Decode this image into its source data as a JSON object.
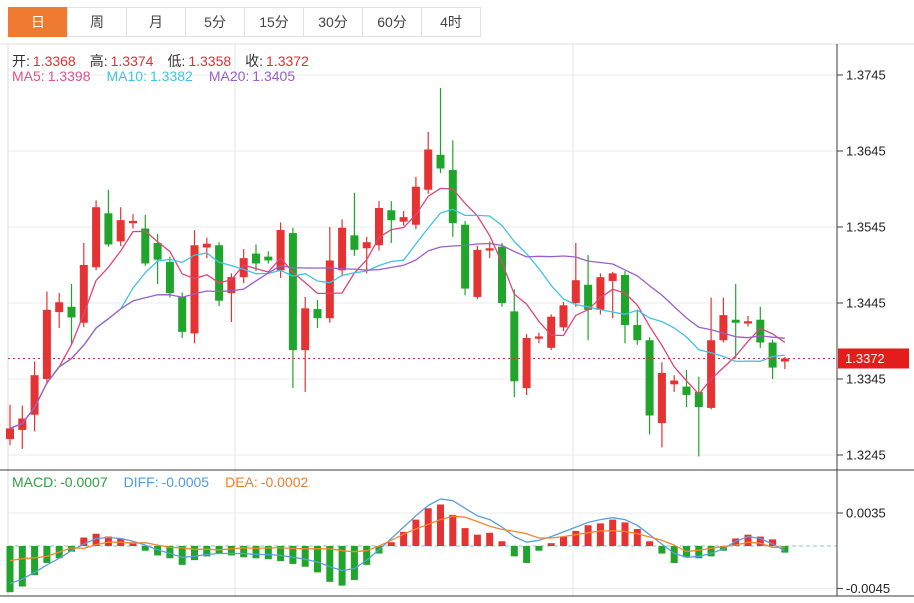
{
  "tabs": {
    "items": [
      {
        "key": "day",
        "label": "日",
        "active": true
      },
      {
        "key": "week",
        "label": "周",
        "active": false
      },
      {
        "key": "month",
        "label": "月",
        "active": false
      },
      {
        "key": "5min",
        "label": "5分",
        "active": false
      },
      {
        "key": "15min",
        "label": "15分",
        "active": false
      },
      {
        "key": "30min",
        "label": "30分",
        "active": false
      },
      {
        "key": "60min",
        "label": "60分",
        "active": false
      },
      {
        "key": "4hour",
        "label": "4时",
        "active": false
      }
    ]
  },
  "quote": {
    "ohlc": [
      {
        "label": "开:",
        "value": "1.3368"
      },
      {
        "label": "高:",
        "value": "1.3374"
      },
      {
        "label": "低:",
        "value": "1.3358"
      },
      {
        "label": "收:",
        "value": "1.3372"
      }
    ],
    "ma": [
      {
        "label": "MA5:",
        "value": "1.3398",
        "color": "#e0528c"
      },
      {
        "label": "MA10:",
        "value": "1.3382",
        "color": "#3fc3e4"
      },
      {
        "label": "MA20:",
        "value": "1.3405",
        "color": "#9a5fc8"
      }
    ]
  },
  "macd_header": [
    {
      "label": "MACD:",
      "value": "-0.0007",
      "color": "#2f9e3f"
    },
    {
      "label": "DIFF:",
      "value": "-0.0005",
      "color": "#4f9be0"
    },
    {
      "label": "DEA:",
      "value": "-0.0002",
      "color": "#ef7c2e"
    }
  ],
  "colors": {
    "up": "#e53232",
    "down": "#1fa52a",
    "ma5": "#e0447c",
    "ma10": "#3fc3e4",
    "ma20": "#9a5fc8",
    "diff": "#5a9fe0",
    "dea": "#f5862c",
    "price_line": "#e03030",
    "badge": "#e51c1c",
    "tab_active": "#ee7b30",
    "grid": "#ebebeb",
    "axis": "#3c3c3c",
    "zero_dash": "#85c2e8"
  },
  "chart_data": {
    "type": "candlestick",
    "panels": [
      "price",
      "macd"
    ],
    "price_ticks": [
      "1.3745",
      "1.3645",
      "1.3545",
      "1.3445",
      "1.3345",
      "1.3245"
    ],
    "last_price": "1.3372",
    "ma_periods": [
      5,
      10,
      20
    ],
    "candles": [
      [
        1.3266,
        1.3311,
        1.3258,
        1.328
      ],
      [
        1.3278,
        1.331,
        1.3253,
        1.3293
      ],
      [
        1.3298,
        1.3368,
        1.3276,
        1.335
      ],
      [
        1.3345,
        1.346,
        1.3338,
        1.3436
      ],
      [
        1.3433,
        1.3458,
        1.3412,
        1.3446
      ],
      [
        1.344,
        1.347,
        1.339,
        1.3426
      ],
      [
        1.3419,
        1.3524,
        1.3413,
        1.3495
      ],
      [
        1.3492,
        1.358,
        1.3488,
        1.3571
      ],
      [
        1.3563,
        1.3594,
        1.3519,
        1.3522
      ],
      [
        1.3526,
        1.3571,
        1.352,
        1.3554
      ],
      [
        1.355,
        1.3562,
        1.3543,
        1.3553
      ],
      [
        1.3543,
        1.3561,
        1.3494,
        1.3497
      ],
      [
        1.3524,
        1.3536,
        1.347,
        1.3502
      ],
      [
        1.3499,
        1.3506,
        1.3452,
        1.3458
      ],
      [
        1.3453,
        1.3459,
        1.3399,
        1.3407
      ],
      [
        1.3405,
        1.3541,
        1.3392,
        1.3521
      ],
      [
        1.3518,
        1.3531,
        1.3504,
        1.3523
      ],
      [
        1.3521,
        1.3525,
        1.3441,
        1.3448
      ],
      [
        1.3458,
        1.3484,
        1.342,
        1.3479
      ],
      [
        1.3479,
        1.3516,
        1.3471,
        1.3504
      ],
      [
        1.351,
        1.3522,
        1.3487,
        1.3497
      ],
      [
        1.3506,
        1.3513,
        1.3497,
        1.3501
      ],
      [
        1.3488,
        1.3551,
        1.3478,
        1.3541
      ],
      [
        1.3537,
        1.3544,
        1.3333,
        1.3383
      ],
      [
        1.3383,
        1.3453,
        1.3328,
        1.3438
      ],
      [
        1.3437,
        1.3449,
        1.3412,
        1.3425
      ],
      [
        1.3425,
        1.3545,
        1.3419,
        1.3501
      ],
      [
        1.3488,
        1.3555,
        1.348,
        1.3544
      ],
      [
        1.3534,
        1.359,
        1.3507,
        1.3515
      ],
      [
        1.3517,
        1.3532,
        1.3484,
        1.3525
      ],
      [
        1.3521,
        1.3579,
        1.3514,
        1.357
      ],
      [
        1.3567,
        1.3579,
        1.3524,
        1.3554
      ],
      [
        1.3552,
        1.3566,
        1.3547,
        1.3558
      ],
      [
        1.3548,
        1.3611,
        1.3542,
        1.3598
      ],
      [
        1.3594,
        1.367,
        1.3589,
        1.3647
      ],
      [
        1.364,
        1.3728,
        1.3616,
        1.3622
      ],
      [
        1.362,
        1.3659,
        1.3532,
        1.355
      ],
      [
        1.3548,
        1.3553,
        1.3455,
        1.3464
      ],
      [
        1.3453,
        1.352,
        1.345,
        1.3515
      ],
      [
        1.3514,
        1.3526,
        1.3504,
        1.3517
      ],
      [
        1.3519,
        1.3524,
        1.344,
        1.3445
      ],
      [
        1.3434,
        1.3463,
        1.3321,
        1.3342
      ],
      [
        1.3333,
        1.3404,
        1.3324,
        1.3399
      ],
      [
        1.3398,
        1.3406,
        1.3392,
        1.3401
      ],
      [
        1.3386,
        1.343,
        1.3383,
        1.3427
      ],
      [
        1.3413,
        1.3446,
        1.3408,
        1.3442
      ],
      [
        1.3445,
        1.3524,
        1.344,
        1.3475
      ],
      [
        1.3469,
        1.3508,
        1.3396,
        1.3436
      ],
      [
        1.3436,
        1.3484,
        1.343,
        1.3479
      ],
      [
        1.3474,
        1.3486,
        1.3425,
        1.3484
      ],
      [
        1.3482,
        1.3487,
        1.3392,
        1.3416
      ],
      [
        1.3416,
        1.3436,
        1.339,
        1.3396
      ],
      [
        1.3396,
        1.34,
        1.3272,
        1.3297
      ],
      [
        1.3287,
        1.3367,
        1.3255,
        1.3353
      ],
      [
        1.3338,
        1.335,
        1.3328,
        1.3343
      ],
      [
        1.3335,
        1.3357,
        1.3308,
        1.3324
      ],
      [
        1.3328,
        1.3348,
        1.3243,
        1.3308
      ],
      [
        1.3307,
        1.3452,
        1.3305,
        1.3396
      ],
      [
        1.3396,
        1.3452,
        1.3393,
        1.3429
      ],
      [
        1.3423,
        1.347,
        1.3372,
        1.3419
      ],
      [
        1.3418,
        1.3428,
        1.3414,
        1.3421
      ],
      [
        1.3423,
        1.344,
        1.3386,
        1.3393
      ],
      [
        1.3393,
        1.3397,
        1.3345,
        1.336
      ],
      [
        1.3368,
        1.3374,
        1.3358,
        1.3372
      ]
    ],
    "macd": {
      "ticks": [
        "0.0035",
        "-0.0045"
      ],
      "hist": [
        -0.0049,
        -0.0043,
        -0.0031,
        -0.0018,
        -0.0013,
        -0.0006,
        0.0009,
        0.0013,
        0.001,
        0.0008,
        0.0004,
        -0.0005,
        -0.001,
        -0.0013,
        -0.002,
        -0.0015,
        -0.0011,
        -0.0008,
        -0.001,
        -0.0012,
        -0.0013,
        -0.0014,
        -0.0016,
        -0.0019,
        -0.0022,
        -0.0028,
        -0.0038,
        -0.0042,
        -0.0036,
        -0.002,
        -0.0008,
        0.0004,
        0.0015,
        0.0028,
        0.004,
        0.0044,
        0.0033,
        0.0019,
        0.0012,
        0.0014,
        0.0005,
        -0.0011,
        -0.0018,
        -0.0005,
        0.0003,
        0.001,
        0.0016,
        0.0022,
        0.0024,
        0.0028,
        0.0025,
        0.0018,
        0.0005,
        -0.0008,
        -0.0018,
        -0.0012,
        -0.0013,
        -0.0011,
        -0.0005,
        0.0008,
        0.0012,
        0.001,
        0.0007,
        -0.0007
      ],
      "diff": [
        -0.004,
        -0.0035,
        -0.0028,
        -0.002,
        -0.0013,
        -0.0005,
        0.0002,
        0.0008,
        0.0009,
        0.0008,
        0.0005,
        0.0001,
        -0.0004,
        -0.0008,
        -0.0012,
        -0.0011,
        -0.0009,
        -0.0008,
        -0.0008,
        -0.0008,
        -0.0009,
        -0.0009,
        -0.001,
        -0.0012,
        -0.0014,
        -0.0017,
        -0.0022,
        -0.0026,
        -0.0024,
        -0.0015,
        -0.0004,
        0.0008,
        0.002,
        0.0032,
        0.0043,
        0.005,
        0.0048,
        0.004,
        0.0032,
        0.0028,
        0.002,
        0.001,
        0.0004,
        0.0006,
        0.001,
        0.0015,
        0.002,
        0.0025,
        0.0028,
        0.003,
        0.0028,
        0.0022,
        0.0012,
        0.0002,
        -0.0008,
        -0.0012,
        -0.0011,
        -0.0008,
        -0.0003,
        0.0005,
        0.001,
        0.0008,
        0.0002,
        -0.0005
      ]
    }
  }
}
